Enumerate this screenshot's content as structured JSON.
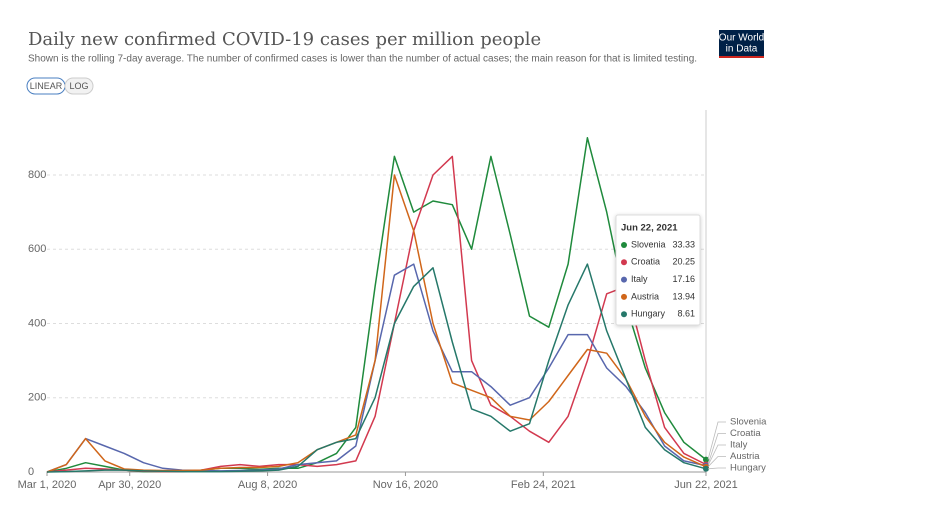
{
  "chart_data": {
    "type": "line",
    "title": "Daily new confirmed COVID-19 cases per million people",
    "subtitle": "Shown is the rolling 7-day average. The number of confirmed cases is lower than the number of actual cases; the main reason for that is limited testing.",
    "scale_buttons": [
      "LINEAR",
      "LOG"
    ],
    "logo": [
      "Our World",
      "in Data"
    ],
    "tooltip_title": "Jun 22, 2021",
    "x": [
      "2020-03-01",
      "2020-03-15",
      "2020-03-29",
      "2020-04-12",
      "2020-04-26",
      "2020-05-10",
      "2020-05-24",
      "2020-06-07",
      "2020-06-21",
      "2020-07-05",
      "2020-07-19",
      "2020-08-02",
      "2020-08-16",
      "2020-08-30",
      "2020-09-13",
      "2020-09-27",
      "2020-10-11",
      "2020-10-25",
      "2020-11-08",
      "2020-11-22",
      "2020-12-06",
      "2020-12-20",
      "2021-01-03",
      "2021-01-17",
      "2021-01-31",
      "2021-02-14",
      "2021-02-28",
      "2021-03-14",
      "2021-03-28",
      "2021-04-11",
      "2021-04-25",
      "2021-05-09",
      "2021-05-23",
      "2021-06-06",
      "2021-06-22"
    ],
    "series": [
      {
        "name": "Slovenia",
        "color": "#1f8a3c",
        "values": [
          0,
          10,
          25,
          15,
          5,
          1,
          1,
          1,
          5,
          10,
          10,
          7,
          10,
          10,
          25,
          50,
          120,
          500,
          850,
          700,
          730,
          720,
          600,
          850,
          640,
          420,
          390,
          560,
          900,
          700,
          450,
          280,
          160,
          80,
          33.33
        ]
      },
      {
        "name": "Croatia",
        "color": "#d2394f",
        "values": [
          0,
          5,
          10,
          8,
          5,
          2,
          1,
          1,
          5,
          15,
          20,
          15,
          20,
          20,
          15,
          20,
          30,
          150,
          400,
          650,
          800,
          850,
          300,
          180,
          150,
          110,
          80,
          150,
          300,
          480,
          500,
          300,
          120,
          50,
          20.25
        ]
      },
      {
        "name": "Italy",
        "color": "#5867ad",
        "values": [
          0,
          20,
          90,
          70,
          50,
          25,
          10,
          5,
          4,
          3,
          4,
          5,
          8,
          20,
          25,
          30,
          70,
          300,
          530,
          560,
          380,
          270,
          270,
          230,
          180,
          200,
          280,
          370,
          370,
          280,
          230,
          160,
          70,
          30,
          17.16
        ]
      },
      {
        "name": "Austria",
        "color": "#d0661a",
        "values": [
          0,
          20,
          90,
          30,
          8,
          5,
          4,
          4,
          5,
          10,
          12,
          12,
          15,
          25,
          60,
          80,
          100,
          300,
          800,
          650,
          400,
          240,
          220,
          200,
          150,
          140,
          190,
          260,
          330,
          320,
          250,
          150,
          80,
          40,
          13.94
        ]
      },
      {
        "name": "Hungary",
        "color": "#26786a",
        "values": [
          0,
          1,
          3,
          5,
          5,
          3,
          2,
          1,
          1,
          1,
          2,
          3,
          5,
          15,
          60,
          80,
          90,
          200,
          400,
          500,
          550,
          350,
          170,
          150,
          110,
          130,
          300,
          450,
          560,
          380,
          250,
          120,
          60,
          25,
          8.61
        ]
      }
    ],
    "xlim": [
      "2020-03-01",
      "2021-06-22"
    ],
    "xticks": [
      {
        "value": "2020-03-01",
        "label": "Mar 1, 2020"
      },
      {
        "value": "2020-04-30",
        "label": "Apr 30, 2020"
      },
      {
        "value": "2020-08-08",
        "label": "Aug 8, 2020"
      },
      {
        "value": "2020-11-16",
        "label": "Nov 16, 2020"
      },
      {
        "value": "2021-02-24",
        "label": "Feb 24, 2021"
      },
      {
        "value": "2021-06-22",
        "label": "Jun 22, 2021"
      }
    ],
    "ylim": [
      0,
      1000
    ],
    "yticks": [
      0,
      200,
      400,
      600,
      800
    ],
    "grid": true
  }
}
